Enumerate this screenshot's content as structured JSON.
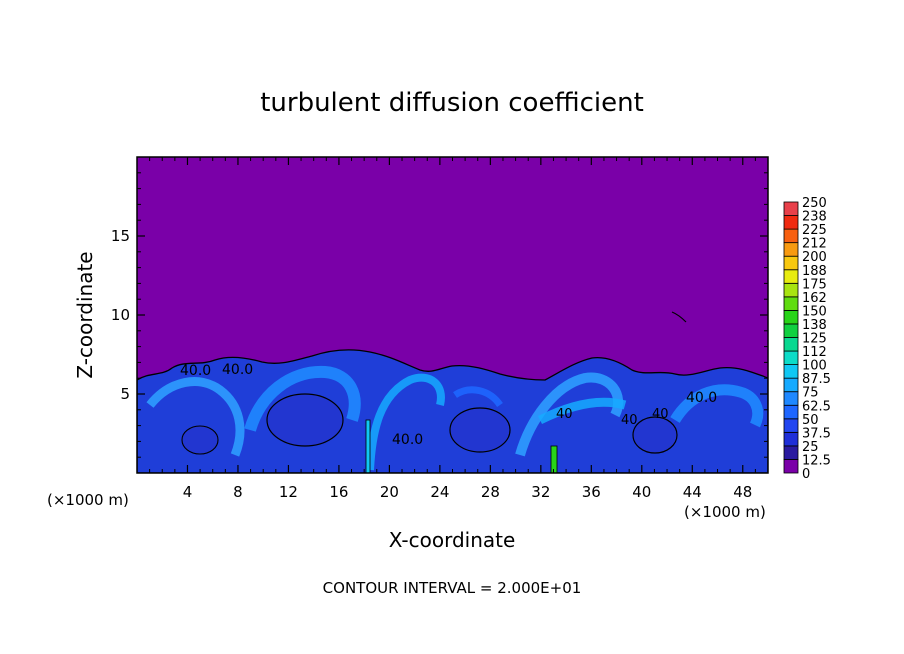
{
  "chart_data": {
    "type": "heatmap",
    "title": "turbulent diffusion coefficient",
    "xlabel": "X-coordinate",
    "ylabel": "Z-coordinate",
    "x_unit": "(×1000 m)",
    "y_unit": "(×1000 m)",
    "xlim": [
      0,
      50
    ],
    "ylim": [
      0,
      20
    ],
    "x_ticks": [
      4,
      8,
      12,
      16,
      20,
      24,
      28,
      32,
      36,
      40,
      44,
      48
    ],
    "y_ticks": [
      5,
      10,
      15
    ],
    "footer": "CONTOUR INTERVAL = 2.000E+01",
    "contour_labels": [
      {
        "x": 3.5,
        "z": 6.5,
        "text": "40.0"
      },
      {
        "x": 8.2,
        "z": 6.6,
        "text": "40.0"
      },
      {
        "x": 21.5,
        "z": 2.0,
        "text": "40.0"
      },
      {
        "x": 34.0,
        "z": 3.8,
        "text": "40"
      },
      {
        "x": 39.0,
        "z": 3.4,
        "text": "40"
      },
      {
        "x": 41.5,
        "z": 3.9,
        "text": "40"
      },
      {
        "x": 45.5,
        "z": 4.8,
        "text": "40.0"
      }
    ],
    "colorbar": {
      "levels": [
        "0",
        "12.5",
        "25",
        "37.5",
        "50",
        "62.5",
        "75",
        "87.5",
        "100",
        "112",
        "125",
        "138",
        "150",
        "162",
        "175",
        "188",
        "200",
        "212",
        "225",
        "238",
        "250"
      ],
      "colors": [
        "#7a00a8",
        "#2a1aa0",
        "#1f2fd8",
        "#2246f0",
        "#1e66ff",
        "#1f88ff",
        "#16aaff",
        "#10c8f4",
        "#0cdcc8",
        "#08d890",
        "#10d040",
        "#28d418",
        "#60dc10",
        "#a8e410",
        "#e8ec10",
        "#f8c810",
        "#f89a10",
        "#f86010",
        "#f02a10",
        "#e8404a"
      ]
    }
  }
}
